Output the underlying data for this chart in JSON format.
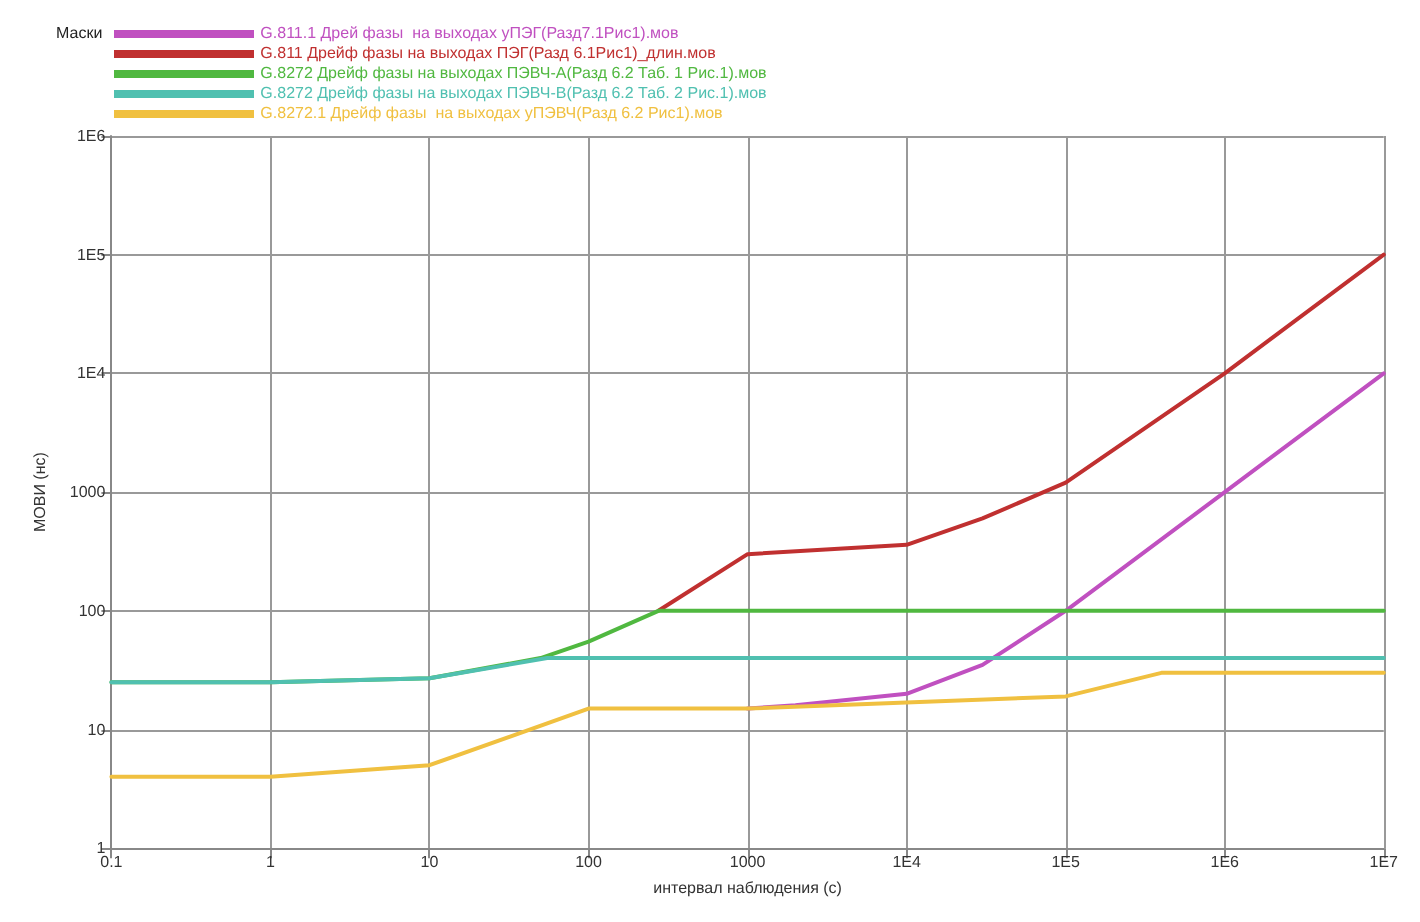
{
  "chart_data": {
    "type": "line",
    "xlabel": "интервал наблюдения (с)",
    "ylabel": "МОВИ (нс)",
    "legend_title": "Маски",
    "legend": "top left",
    "grid": true,
    "log": "xy",
    "marker": "none",
    "line_style": "solid",
    "xlim": [
      0.1,
      10000000
    ],
    "ylim": [
      1,
      1000000
    ],
    "xticks": [
      0.1,
      1,
      10,
      100,
      1000,
      {
        "value": 10000,
        "label": "1E4"
      },
      {
        "value": 100000,
        "label": "1E5"
      },
      {
        "value": 1000000,
        "label": "1E6"
      },
      {
        "value": 10000000,
        "label": "1E7"
      }
    ],
    "yticks": [
      1,
      10,
      100,
      1000,
      {
        "value": 10000,
        "label": "1E4"
      },
      {
        "value": 100000,
        "label": "1E5"
      },
      {
        "value": 1000000,
        "label": "1E6"
      }
    ],
    "series": [
      {
        "name": "G.811.1 Дрей фазы  на выходах уПЭГ(Разд7.1Рис1).мов",
        "color": "#c050c0",
        "x": [
          1000,
          2000,
          10000,
          30000,
          100000,
          1000000,
          10000000
        ],
        "values": [
          15,
          16,
          20,
          35,
          100,
          1000,
          10000
        ]
      },
      {
        "name": "G.811 Дрейф фазы на выходах ПЭГ(Разд 6.1Рис1)_длин.мов",
        "color": "#c03030",
        "x": [
          275,
          1000,
          10000,
          30000,
          100000,
          1000000,
          10000000
        ],
        "values": [
          100,
          300,
          360,
          600,
          1200,
          10000,
          100000
        ]
      },
      {
        "name": "G.8272 Дрейф фазы на выходах ПЭВЧ-А(Разд 6.2 Таб. 1 Рис.1).мов",
        "color": "#50b840",
        "x": [
          0.1,
          1,
          10,
          50,
          100,
          275,
          10000000
        ],
        "values": [
          25,
          25,
          27,
          40,
          55,
          100,
          100
        ]
      },
      {
        "name": "G.8272 Дрейф фазы на выходах ПЭВЧ-В(Разд 6.2 Таб. 2 Рис.1).мов",
        "color": "#50c0b0",
        "x": [
          0.1,
          1,
          10,
          55,
          10000000
        ],
        "values": [
          25,
          25,
          27,
          40,
          40
        ]
      },
      {
        "name": "G.8272.1 Дрейф фазы  на выходах уПЭВЧ(Разд 6.2 Рис1).мов",
        "color": "#f0c040",
        "x": [
          0.1,
          1,
          10,
          100,
          1000,
          100000,
          400000,
          10000000
        ],
        "values": [
          4,
          4,
          5,
          15,
          15,
          19,
          30,
          30
        ]
      }
    ]
  }
}
